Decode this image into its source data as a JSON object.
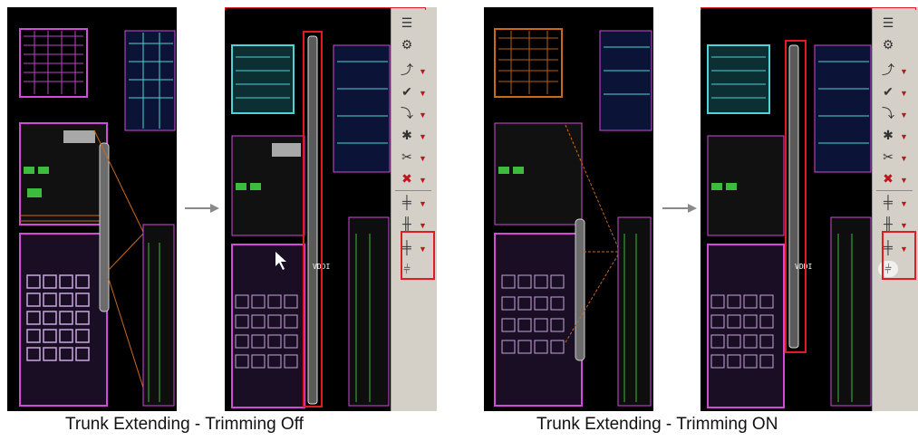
{
  "captions": {
    "left": "Trunk Extending - Trimming Off",
    "right": "Trunk Extending - Trimming ON"
  },
  "labels": {
    "net_name": "VDDI"
  },
  "toolbar_icons": [
    "layers-icon",
    "settings-icon",
    "route-icon",
    "check-icon",
    "route-edit-icon",
    "gear-icon",
    "scissors-icon",
    "delete-icon",
    "trunk-icon",
    "trunk-extend-icon",
    "trunk-trim-icon",
    "trunk-trim-toggle-icon"
  ],
  "colors": {
    "layout_background": "#000000",
    "highlight": "#e01b24",
    "toolbar": "#d4d0c8",
    "metal_cyan": "#4fd3d9",
    "metal_magenta": "#d14ad8",
    "metal_green": "#3dbb3d",
    "metal_orange": "#c96a1b"
  }
}
